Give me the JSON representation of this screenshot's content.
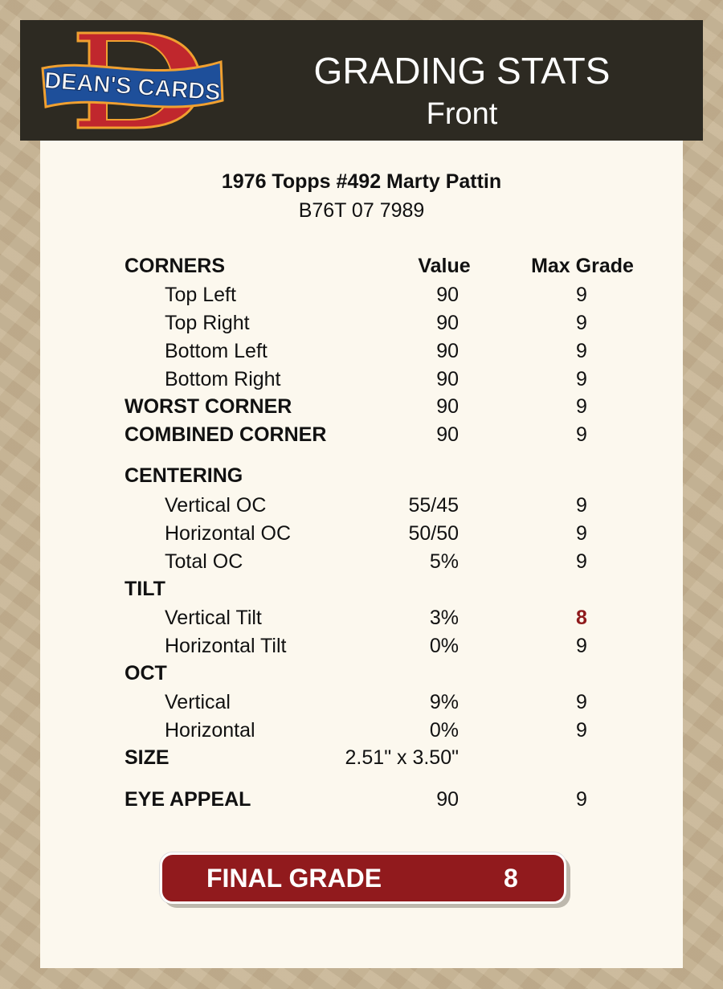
{
  "header": {
    "brand": "DEAN'S CARDS",
    "title": "GRADING STATS",
    "subtitle": "Front"
  },
  "card": {
    "name": "1976 Topps #492 Marty Pattin",
    "serial": "B76T 07 7989"
  },
  "columns": {
    "section": "CORNERS",
    "value": "Value",
    "max": "Max Grade"
  },
  "rows": [
    {
      "label": "Top Left",
      "value": "90",
      "max": "9"
    },
    {
      "label": "Top Right",
      "value": "90",
      "max": "9"
    },
    {
      "label": "Bottom Left",
      "value": "90",
      "max": "9"
    },
    {
      "label": "Bottom Right",
      "value": "90",
      "max": "9"
    },
    {
      "label": "WORST CORNER",
      "value": "90",
      "max": "9"
    },
    {
      "label": "COMBINED CORNER",
      "value": "90",
      "max": "9"
    },
    {
      "label": "CENTERING"
    },
    {
      "label": "Vertical OC",
      "value": "55/45",
      "max": "9"
    },
    {
      "label": "Horizontal OC",
      "value": "50/50",
      "max": "9"
    },
    {
      "label": "Total OC",
      "value": "5%",
      "max": "9"
    },
    {
      "label": "TILT"
    },
    {
      "label": "Vertical Tilt",
      "value": "3%",
      "max": "8"
    },
    {
      "label": "Horizontal Tilt",
      "value": "0%",
      "max": "9"
    },
    {
      "label": "OCT"
    },
    {
      "label": "Vertical",
      "value": "9%",
      "max": "9"
    },
    {
      "label": "Horizontal",
      "value": "0%",
      "max": "9"
    },
    {
      "label": "SIZE",
      "value": "2.51\" x 3.50\""
    },
    {
      "label": "EYE APPEAL",
      "value": "90",
      "max": "9"
    }
  ],
  "final": {
    "label": "FINAL GRADE",
    "value": "8"
  },
  "colors": {
    "header_bg": "#2d2a22",
    "panel_bg": "#fcf8ee",
    "accent_red": "#911a1d",
    "low_grade": "#8f1a1c"
  }
}
